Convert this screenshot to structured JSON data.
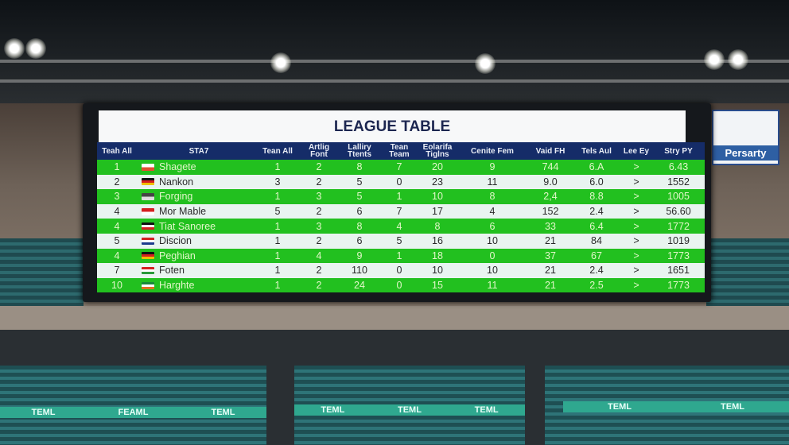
{
  "scoreboard": {
    "title": "LEAGUE TABLE",
    "headers": [
      "Teah All",
      "STA7",
      "Tean All",
      "Artlig Font",
      "Lalliry Ttents",
      "Tean Team",
      "Eolarifa Tiglns",
      "Cenite Fem",
      "Vaid FH",
      "Tels Aul",
      "Lee Ey",
      "Stry PY"
    ],
    "rows": [
      {
        "rank": "1",
        "team": "Shagete",
        "flag": [
          "#ffffff",
          "#e05030"
        ],
        "vals": [
          "1",
          "2",
          "8",
          "7",
          "20",
          "9",
          "744",
          "6.A",
          ">",
          "6.43"
        ]
      },
      {
        "rank": "2",
        "team": "Nankon",
        "flag": [
          "#111111",
          "#d42020",
          "#f0c000"
        ],
        "vals": [
          "3",
          "2",
          "5",
          "0",
          "23",
          "11",
          "9.0",
          "6.0",
          ">",
          "1552"
        ]
      },
      {
        "rank": "3",
        "team": "Forging",
        "flag": [
          "#444444",
          "#dddddd"
        ],
        "vals": [
          "1",
          "3",
          "5",
          "1",
          "10",
          "8",
          "2,4",
          "8.8",
          ">",
          "1005"
        ]
      },
      {
        "rank": "4",
        "team": "Mor Mable",
        "flag": [
          "#d42020",
          "#ffffff"
        ],
        "vals": [
          "5",
          "2",
          "6",
          "7",
          "17",
          "4",
          "152",
          "2.4",
          ">",
          "56.60"
        ]
      },
      {
        "rank": "4",
        "team": "Tiat Sanoree",
        "flag": [
          "#111111",
          "#ffffff",
          "#d42020"
        ],
        "vals": [
          "1",
          "3",
          "8",
          "4",
          "8",
          "6",
          "33",
          "6.4",
          ">",
          "1772"
        ]
      },
      {
        "rank": "5",
        "team": "Discion",
        "flag": [
          "#d42020",
          "#ffffff",
          "#1e3c8c"
        ],
        "vals": [
          "1",
          "2",
          "6",
          "5",
          "16",
          "10",
          "21",
          "84",
          ">",
          "1019"
        ]
      },
      {
        "rank": "4",
        "team": "Peghian",
        "flag": [
          "#111111",
          "#d42020",
          "#f0c000"
        ],
        "vals": [
          "1",
          "4",
          "9",
          "1",
          "18",
          "0",
          "37",
          "67",
          ">",
          "1773"
        ]
      },
      {
        "rank": "7",
        "team": "Foten",
        "flag": [
          "#d42020",
          "#ffffff",
          "#2a9a3a"
        ],
        "vals": [
          "1",
          "2",
          "110",
          "0",
          "10",
          "10",
          "21",
          "2.4",
          ">",
          "1651"
        ]
      },
      {
        "rank": "10",
        "team": "Harghte",
        "flag": [
          "#1a8a3a",
          "#ffffff",
          "#e07020"
        ],
        "vals": [
          "1",
          "2",
          "24",
          "0",
          "15",
          "11",
          "21",
          "2.5",
          ">",
          "1773"
        ]
      }
    ]
  },
  "ad_banner": {
    "text": "Persarty"
  },
  "stand_banners": [
    "TEML",
    "FEAML",
    "TEML",
    "TEML",
    "TEML",
    "TEML",
    "TEML",
    "TEML"
  ],
  "colors": {
    "green_row": "#22c01f",
    "light_row": "#e9f4f0",
    "header": "#152c68"
  }
}
